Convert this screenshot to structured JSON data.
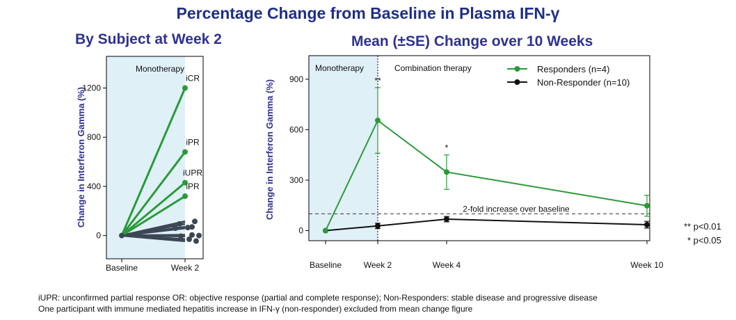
{
  "title": "Percentage Change from Baseline in Plasma IFN-γ",
  "sig_legend": [
    "** p<0.01",
    "* p<0.05"
  ],
  "footnotes": [
    "iUPR: unconfirmed partial response OR: objective response (partial and complete response); Non-Responders: stable disease and progressive disease",
    "One participant with immune mediated hepatitis increase in IFN-γ (non-responder) excluded from mean change figure"
  ],
  "chart_data": [
    {
      "type": "line",
      "title": "By Subject at Week 2",
      "ylabel": "Change in Interferon Gamma (%)",
      "categories": [
        "Baseline",
        "Week 2"
      ],
      "ylim": [
        -60,
        1400
      ],
      "yticks": [
        0,
        400,
        800,
        1200
      ],
      "band_label": "Monotherapy",
      "colors": {
        "responder": "#2a9a38",
        "non_responder": "#3c4654",
        "band": "#dff0f7"
      },
      "responders": [
        {
          "values": [
            0,
            1200
          ],
          "label": "iCR"
        },
        {
          "values": [
            0,
            680
          ],
          "label": "iPR"
        },
        {
          "values": [
            0,
            430
          ],
          "label": "iUPR"
        },
        {
          "values": [
            0,
            320
          ],
          "label": "iPR"
        }
      ],
      "non_responders": [
        {
          "values": [
            0,
            115
          ]
        },
        {
          "values": [
            0,
            95
          ]
        },
        {
          "values": [
            0,
            70
          ]
        },
        {
          "values": [
            0,
            65
          ]
        },
        {
          "values": [
            0,
            60
          ]
        },
        {
          "values": [
            0,
            5
          ]
        },
        {
          "values": [
            0,
            0
          ]
        },
        {
          "values": [
            0,
            -5
          ]
        },
        {
          "values": [
            0,
            -30
          ]
        },
        {
          "values": [
            0,
            -45
          ]
        }
      ]
    },
    {
      "type": "line",
      "title": "Mean (±SE) Change over 10 Weeks",
      "ylabel": "Change in Interferon Gamma (%)",
      "x": [
        0,
        2,
        4,
        10
      ],
      "xticklabels": [
        "Baseline",
        "Week 2",
        "Week 4",
        "Week 10"
      ],
      "ylim": [
        -60,
        1000
      ],
      "yticks": [
        0,
        300,
        600,
        900
      ],
      "band_label": "Monotherapy",
      "combination_label": "Combination therapy",
      "reference_line": {
        "y": 100,
        "label": "2-fold increase over baseline"
      },
      "colors": {
        "responder": "#2a9a38",
        "non_responder": "#111111",
        "band": "#dff0f7"
      },
      "series": [
        {
          "name": "Responders (n=4)",
          "values": [
            0,
            655,
            348,
            148
          ],
          "err_low": [
            0,
            460,
            245,
            85
          ],
          "err_high": [
            0,
            850,
            450,
            210
          ],
          "annotations": [
            "",
            "**",
            "*",
            ""
          ]
        },
        {
          "name": "Non-Responder (n=10)",
          "values": [
            0,
            28,
            68,
            35
          ],
          "err_low": [
            0,
            12,
            52,
            15
          ],
          "err_high": [
            0,
            44,
            84,
            55
          ],
          "annotations": [
            "",
            "",
            "",
            ""
          ]
        }
      ],
      "legend": "top-right"
    }
  ]
}
